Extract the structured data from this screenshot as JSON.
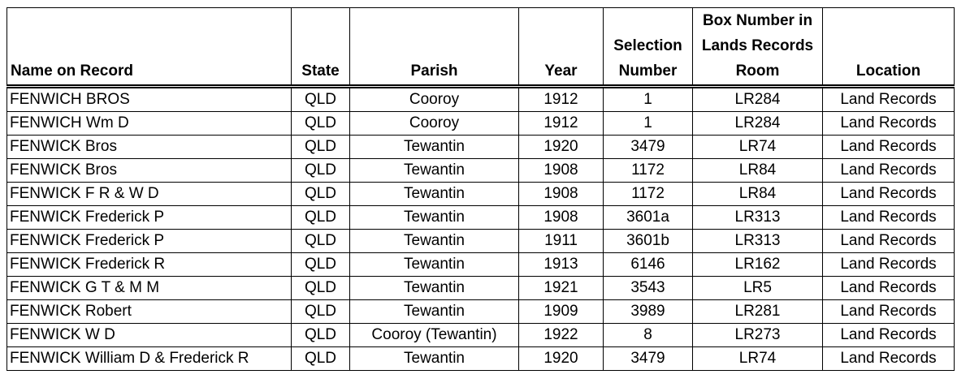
{
  "headers": {
    "name": "Name on Record",
    "state": "State",
    "parish": "Parish",
    "year": "Year",
    "selection_line1": "Selection",
    "selection_line2": "Number",
    "box_line1": "Box Number in",
    "box_line2": "Lands Records",
    "box_line3": "Room",
    "location": "Location"
  },
  "rows": [
    {
      "name": "FENWICH BROS",
      "state": "QLD",
      "parish": "Cooroy",
      "year": "1912",
      "selection": "1",
      "box": "LR284",
      "location": "Land Records"
    },
    {
      "name": "FENWICH Wm D",
      "state": "QLD",
      "parish": "Cooroy",
      "year": "1912",
      "selection": "1",
      "box": "LR284",
      "location": "Land Records"
    },
    {
      "name": "FENWICK Bros",
      "state": "QLD",
      "parish": "Tewantin",
      "year": "1920",
      "selection": "3479",
      "box": "LR74",
      "location": "Land Records"
    },
    {
      "name": "FENWICK Bros",
      "state": "QLD",
      "parish": "Tewantin",
      "year": "1908",
      "selection": "1172",
      "box": "LR84",
      "location": "Land Records"
    },
    {
      "name": "FENWICK F R & W D",
      "state": "QLD",
      "parish": "Tewantin",
      "year": "1908",
      "selection": "1172",
      "box": "LR84",
      "location": "Land Records"
    },
    {
      "name": "FENWICK Frederick P",
      "state": "QLD",
      "parish": "Tewantin",
      "year": "1908",
      "selection": "3601a",
      "box": "LR313",
      "location": "Land Records"
    },
    {
      "name": "FENWICK Frederick P",
      "state": "QLD",
      "parish": "Tewantin",
      "year": "1911",
      "selection": "3601b",
      "box": "LR313",
      "location": "Land Records"
    },
    {
      "name": "FENWICK Frederick R",
      "state": "QLD",
      "parish": "Tewantin",
      "year": "1913",
      "selection": "6146",
      "box": "LR162",
      "location": "Land Records"
    },
    {
      "name": "FENWICK G T & M M",
      "state": "QLD",
      "parish": "Tewantin",
      "year": "1921",
      "selection": "3543",
      "box": "LR5",
      "location": "Land Records"
    },
    {
      "name": "FENWICK Robert",
      "state": "QLD",
      "parish": "Tewantin",
      "year": "1909",
      "selection": "3989",
      "box": "LR281",
      "location": "Land Records"
    },
    {
      "name": "FENWICK W D",
      "state": "QLD",
      "parish": "Cooroy (Tewantin)",
      "year": "1922",
      "selection": "8",
      "box": "LR273",
      "location": "Land Records"
    },
    {
      "name": "FENWICK William D & Frederick R",
      "state": "QLD",
      "parish": "Tewantin",
      "year": "1920",
      "selection": "3479",
      "box": "LR74",
      "location": "Land Records"
    }
  ]
}
